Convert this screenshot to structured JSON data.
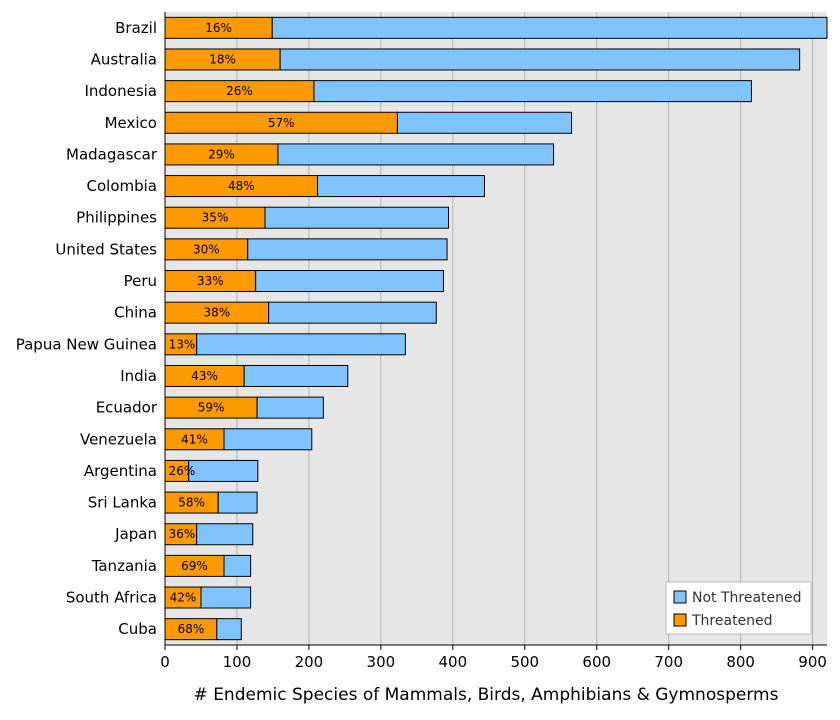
{
  "chart_data": {
    "type": "bar",
    "orientation": "horizontal",
    "stacked": true,
    "categories": [
      "Brazil",
      "Australia",
      "Indonesia",
      "Mexico",
      "Madagascar",
      "Colombia",
      "Philippines",
      "United States",
      "Peru",
      "China",
      "Papua New Guinea",
      "India",
      "Ecuador",
      "Venezuela",
      "Argentina",
      "Sri Lanka",
      "Japan",
      "Tanzania",
      "South Africa",
      "Cuba"
    ],
    "series": [
      {
        "name": "Threatened",
        "color": "#ff9900",
        "values": [
          149,
          160,
          207,
          323,
          157,
          212,
          139,
          115,
          126,
          144,
          44,
          110,
          128,
          82,
          33,
          74,
          44,
          82,
          50,
          72
        ]
      },
      {
        "name": "Not Threatened",
        "color": "#80c4ff",
        "values": [
          771,
          722,
          608,
          242,
          383,
          232,
          255,
          277,
          261,
          233,
          290,
          144,
          92,
          122,
          96,
          54,
          78,
          37,
          69,
          34
        ]
      }
    ],
    "bar_labels": [
      "16%",
      "18%",
      "26%",
      "57%",
      "29%",
      "48%",
      "35%",
      "30%",
      "33%",
      "38%",
      "13%",
      "43%",
      "59%",
      "41%",
      "26%",
      "58%",
      "36%",
      "69%",
      "42%",
      "68%"
    ],
    "xlabel": "# Endemic Species of Mammals, Birds, Amphibians & Gymnosperms",
    "ylabel": "",
    "xlim": [
      0,
      920
    ],
    "xticks": [
      0,
      100,
      200,
      300,
      400,
      500,
      600,
      700,
      800,
      900
    ],
    "grid": "vertical",
    "legend_position": "bottom-right",
    "legend_order": [
      "Not Threatened",
      "Threatened"
    ],
    "plot_background": "#e6e6e6"
  }
}
